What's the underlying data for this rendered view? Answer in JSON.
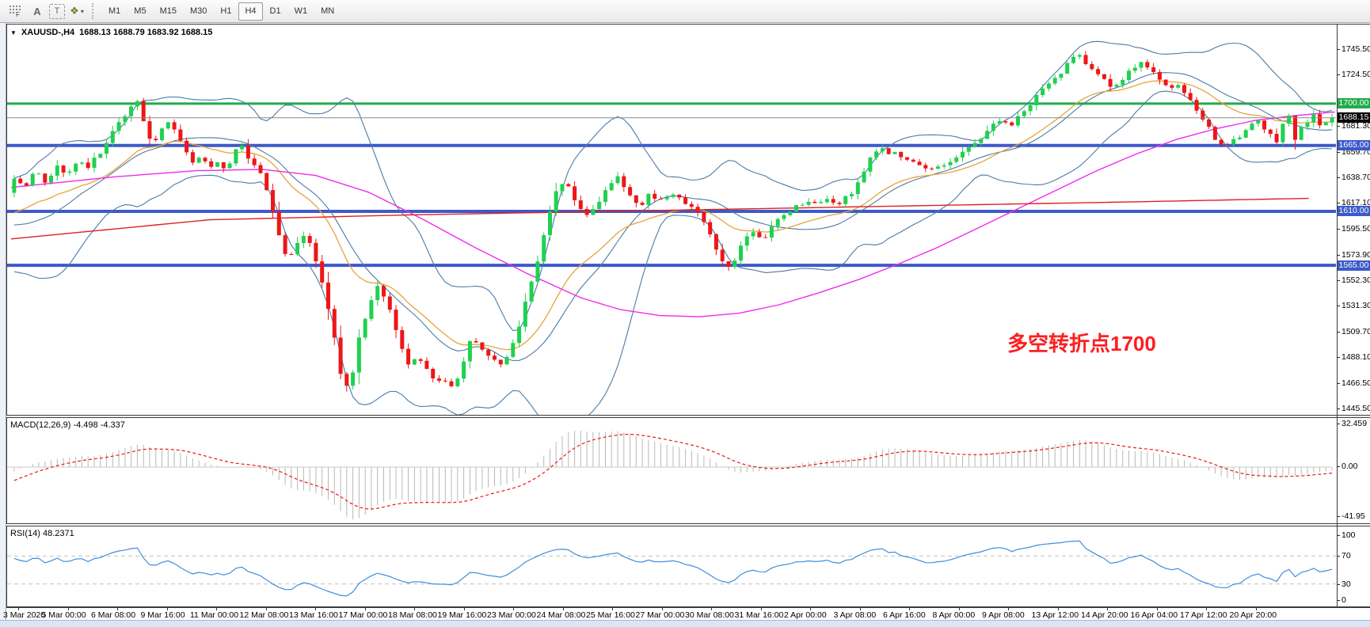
{
  "toolbar": {
    "icons": [
      {
        "name": "indicator-grid-icon",
        "glyph": "grid",
        "sub": "F"
      },
      {
        "name": "label-tool-icon",
        "glyph": "A"
      },
      {
        "name": "text-tool-icon",
        "glyph": "T"
      },
      {
        "name": "cycle-colors-icon",
        "glyph": "❖",
        "caret": "▾"
      }
    ],
    "timeframes": [
      "M1",
      "M5",
      "M15",
      "M30",
      "H1",
      "H4",
      "D1",
      "W1",
      "MN"
    ],
    "active_timeframe": "H4"
  },
  "symbol_bar": {
    "dropdown_glyph": "▼",
    "label": "XAUUSD-,H4",
    "ohlc": "1688.13 1688.79 1683.92 1688.15"
  },
  "annotation": {
    "text": "多空转折点1700",
    "color": "#fe1e1e"
  },
  "price_axis": {
    "ticks": [
      "1745.50",
      "1724.50",
      "1681.30",
      "1659.70",
      "1638.70",
      "1617.10",
      "1595.50",
      "1573.90",
      "1552.30",
      "1531.30",
      "1509.70",
      "1488.10",
      "1466.50",
      "1445.50"
    ],
    "badges": [
      {
        "label": "1700.00",
        "price": 1700.0,
        "bg": "#21ab4a"
      },
      {
        "label": "1688.15",
        "price": 1688.15,
        "bg": "#000000"
      },
      {
        "label": "1665.00",
        "price": 1665.0,
        "bg": "#3d59c9"
      },
      {
        "label": "1610.00",
        "price": 1610.0,
        "bg": "#3d59c9"
      },
      {
        "label": "1565.00",
        "price": 1565.0,
        "bg": "#3d59c9"
      }
    ]
  },
  "macd_panel": {
    "label": "MACD(12,26,9) -4.498 -4.337",
    "axis_ticks": [
      "32.459",
      "0.00",
      "-41.95"
    ]
  },
  "rsi_panel": {
    "label": "RSI(14) 48.2371",
    "axis_ticks": [
      "100",
      "70",
      "30",
      "0"
    ],
    "levels": [
      70,
      30
    ],
    "line_color": "#3e8ede"
  },
  "time_axis": {
    "labels": [
      "3 Mar 2020",
      "5 Mar 00:00",
      "6 Mar 08:00",
      "9 Mar 16:00",
      "11 Mar 00:00",
      "12 Mar 08:00",
      "13 Mar 16:00",
      "17 Mar 00:00",
      "18 Mar 08:00",
      "19 Mar 16:00",
      "23 Mar 00:00",
      "24 Mar 08:00",
      "25 Mar 16:00",
      "27 Mar 00:00",
      "30 Mar 08:00",
      "31 Mar 16:00",
      "2 Apr 00:00",
      "3 Apr 08:00",
      "6 Apr 16:00",
      "8 Apr 00:00",
      "9 Apr 08:00",
      "13 Apr 12:00",
      "14 Apr 20:00",
      "16 Apr 04:00",
      "17 Apr 12:00",
      "20 Apr 20:00"
    ]
  },
  "chart_data": {
    "type": "candlestick",
    "symbol": "XAUUSD",
    "timeframe": "H4",
    "bid": 1688.15,
    "current_ohlc": {
      "open": 1688.13,
      "high": 1688.79,
      "low": 1683.92,
      "close": 1688.15
    },
    "visible_price_range": [
      1440,
      1765
    ],
    "candle_count": 215,
    "up_color": "#1fd14f",
    "down_color": "#ee1616",
    "bid_line_color": "#8a8a8a",
    "hlines": [
      {
        "price": 1700.0,
        "color": "#21ab4a",
        "width": 3
      },
      {
        "price": 1665.0,
        "color": "#3d59c9",
        "width": 4
      },
      {
        "price": 1610.0,
        "color": "#3d59c9",
        "width": 4
      },
      {
        "price": 1565.0,
        "color": "#3d59c9",
        "width": 4
      }
    ],
    "close_path_anchors": [
      [
        0,
        1638
      ],
      [
        0.008,
        1630
      ],
      [
        0.016,
        1644
      ],
      [
        0.024,
        1634
      ],
      [
        0.032,
        1648
      ],
      [
        0.04,
        1640
      ],
      [
        0.048,
        1652
      ],
      [
        0.056,
        1646
      ],
      [
        0.064,
        1658
      ],
      [
        0.072,
        1670
      ],
      [
        0.08,
        1684
      ],
      [
        0.088,
        1696
      ],
      [
        0.094,
        1702
      ],
      [
        0.1,
        1680
      ],
      [
        0.106,
        1664
      ],
      [
        0.112,
        1678
      ],
      [
        0.118,
        1688
      ],
      [
        0.124,
        1672
      ],
      [
        0.13,
        1660
      ],
      [
        0.136,
        1650
      ],
      [
        0.142,
        1658
      ],
      [
        0.148,
        1645
      ],
      [
        0.154,
        1653
      ],
      [
        0.16,
        1642
      ],
      [
        0.166,
        1656
      ],
      [
        0.172,
        1668
      ],
      [
        0.178,
        1655
      ],
      [
        0.184,
        1645
      ],
      [
        0.19,
        1636
      ],
      [
        0.196,
        1612
      ],
      [
        0.202,
        1585
      ],
      [
        0.208,
        1568
      ],
      [
        0.214,
        1580
      ],
      [
        0.22,
        1590
      ],
      [
        0.226,
        1580
      ],
      [
        0.232,
        1558
      ],
      [
        0.238,
        1530
      ],
      [
        0.244,
        1498
      ],
      [
        0.25,
        1458
      ],
      [
        0.256,
        1470
      ],
      [
        0.262,
        1505
      ],
      [
        0.269,
        1528
      ],
      [
        0.276,
        1548
      ],
      [
        0.283,
        1532
      ],
      [
        0.29,
        1512
      ],
      [
        0.298,
        1480
      ],
      [
        0.306,
        1492
      ],
      [
        0.314,
        1475
      ],
      [
        0.322,
        1470
      ],
      [
        0.33,
        1464
      ],
      [
        0.338,
        1472
      ],
      [
        0.346,
        1502
      ],
      [
        0.354,
        1498
      ],
      [
        0.362,
        1488
      ],
      [
        0.371,
        1480
      ],
      [
        0.379,
        1500
      ],
      [
        0.387,
        1530
      ],
      [
        0.395,
        1558
      ],
      [
        0.403,
        1594
      ],
      [
        0.411,
        1628
      ],
      [
        0.419,
        1634
      ],
      [
        0.427,
        1616
      ],
      [
        0.435,
        1608
      ],
      [
        0.443,
        1618
      ],
      [
        0.451,
        1632
      ],
      [
        0.459,
        1638
      ],
      [
        0.467,
        1624
      ],
      [
        0.475,
        1613
      ],
      [
        0.482,
        1626
      ],
      [
        0.49,
        1619
      ],
      [
        0.5,
        1624
      ],
      [
        0.51,
        1618
      ],
      [
        0.519,
        1610
      ],
      [
        0.527,
        1594
      ],
      [
        0.535,
        1570
      ],
      [
        0.543,
        1563
      ],
      [
        0.551,
        1580
      ],
      [
        0.559,
        1592
      ],
      [
        0.567,
        1585
      ],
      [
        0.575,
        1598
      ],
      [
        0.585,
        1608
      ],
      [
        0.593,
        1614
      ],
      [
        0.601,
        1618
      ],
      [
        0.609,
        1615
      ],
      [
        0.617,
        1620
      ],
      [
        0.625,
        1616
      ],
      [
        0.633,
        1622
      ],
      [
        0.641,
        1636
      ],
      [
        0.649,
        1652
      ],
      [
        0.657,
        1663
      ],
      [
        0.666,
        1659
      ],
      [
        0.675,
        1654
      ],
      [
        0.684,
        1649
      ],
      [
        0.694,
        1644
      ],
      [
        0.703,
        1649
      ],
      [
        0.712,
        1653
      ],
      [
        0.721,
        1660
      ],
      [
        0.73,
        1668
      ],
      [
        0.739,
        1678
      ],
      [
        0.747,
        1687
      ],
      [
        0.755,
        1680
      ],
      [
        0.763,
        1689
      ],
      [
        0.771,
        1700
      ],
      [
        0.779,
        1711
      ],
      [
        0.786,
        1717
      ],
      [
        0.793,
        1724
      ],
      [
        0.8,
        1736
      ],
      [
        0.807,
        1745
      ],
      [
        0.814,
        1733
      ],
      [
        0.821,
        1727
      ],
      [
        0.828,
        1718
      ],
      [
        0.835,
        1712
      ],
      [
        0.842,
        1720
      ],
      [
        0.849,
        1730
      ],
      [
        0.856,
        1737
      ],
      [
        0.863,
        1728
      ],
      [
        0.87,
        1718
      ],
      [
        0.877,
        1710
      ],
      [
        0.884,
        1716
      ],
      [
        0.891,
        1704
      ],
      [
        0.897,
        1694
      ],
      [
        0.904,
        1682
      ],
      [
        0.911,
        1672
      ],
      [
        0.919,
        1665
      ],
      [
        0.927,
        1669
      ],
      [
        0.935,
        1678
      ],
      [
        0.943,
        1685
      ],
      [
        0.951,
        1675
      ],
      [
        0.959,
        1668
      ],
      [
        0.966,
        1698
      ],
      [
        0.972,
        1670
      ],
      [
        0.979,
        1684
      ],
      [
        0.986,
        1689
      ],
      [
        0.993,
        1680
      ],
      [
        1,
        1688.2
      ]
    ],
    "prehistory_anchors": [
      [
        -0.235,
        1650
      ],
      [
        -0.21,
        1662
      ],
      [
        -0.19,
        1676
      ],
      [
        -0.175,
        1686
      ],
      [
        -0.16,
        1670
      ],
      [
        -0.145,
        1648
      ],
      [
        -0.13,
        1640
      ],
      [
        -0.115,
        1645
      ],
      [
        -0.1,
        1632
      ],
      [
        -0.085,
        1620
      ],
      [
        -0.07,
        1600
      ],
      [
        -0.055,
        1572
      ],
      [
        -0.045,
        1566
      ],
      [
        -0.035,
        1585
      ],
      [
        -0.025,
        1596
      ],
      [
        -0.015,
        1605
      ],
      [
        -0.007,
        1620
      ]
    ],
    "ma_red_anchors": [
      [
        0,
        1587
      ],
      [
        0.15,
        1603
      ],
      [
        0.3,
        1607
      ],
      [
        0.5,
        1611
      ],
      [
        0.7,
        1615
      ],
      [
        0.85,
        1618
      ],
      [
        0.985,
        1621
      ]
    ],
    "ma_magenta_anchors": [
      [
        0,
        1630
      ],
      [
        0.08,
        1639
      ],
      [
        0.14,
        1644
      ],
      [
        0.19,
        1645
      ],
      [
        0.23,
        1640
      ],
      [
        0.27,
        1626
      ],
      [
        0.31,
        1604
      ],
      [
        0.35,
        1580
      ],
      [
        0.39,
        1558
      ],
      [
        0.43,
        1538
      ],
      [
        0.46,
        1528
      ],
      [
        0.49,
        1523
      ],
      [
        0.52,
        1522
      ],
      [
        0.55,
        1525
      ],
      [
        0.58,
        1532
      ],
      [
        0.61,
        1542
      ],
      [
        0.64,
        1553
      ],
      [
        0.67,
        1566
      ],
      [
        0.7,
        1580
      ],
      [
        0.73,
        1596
      ],
      [
        0.76,
        1612
      ],
      [
        0.79,
        1628
      ],
      [
        0.82,
        1644
      ],
      [
        0.85,
        1658
      ],
      [
        0.88,
        1670
      ],
      [
        0.91,
        1679
      ],
      [
        0.94,
        1686
      ],
      [
        0.97,
        1690
      ],
      [
        1,
        1693
      ]
    ],
    "overlays": {
      "bollinger_period": 20,
      "bollinger_dev": 2,
      "bb_color": "#4a7ba6",
      "ema_period": 20,
      "ema_color": "#e8a33d",
      "magenta_color": "#ef2bef",
      "red_color": "#e02020"
    },
    "macd": {
      "fast": 12,
      "slow": 26,
      "signal": 9,
      "hist_color": "#b8b8b8",
      "signal_color": "#f01414",
      "last_values": [
        -4.498,
        -4.337
      ]
    },
    "rsi": {
      "period": 14,
      "last_value": 48.2371
    }
  }
}
